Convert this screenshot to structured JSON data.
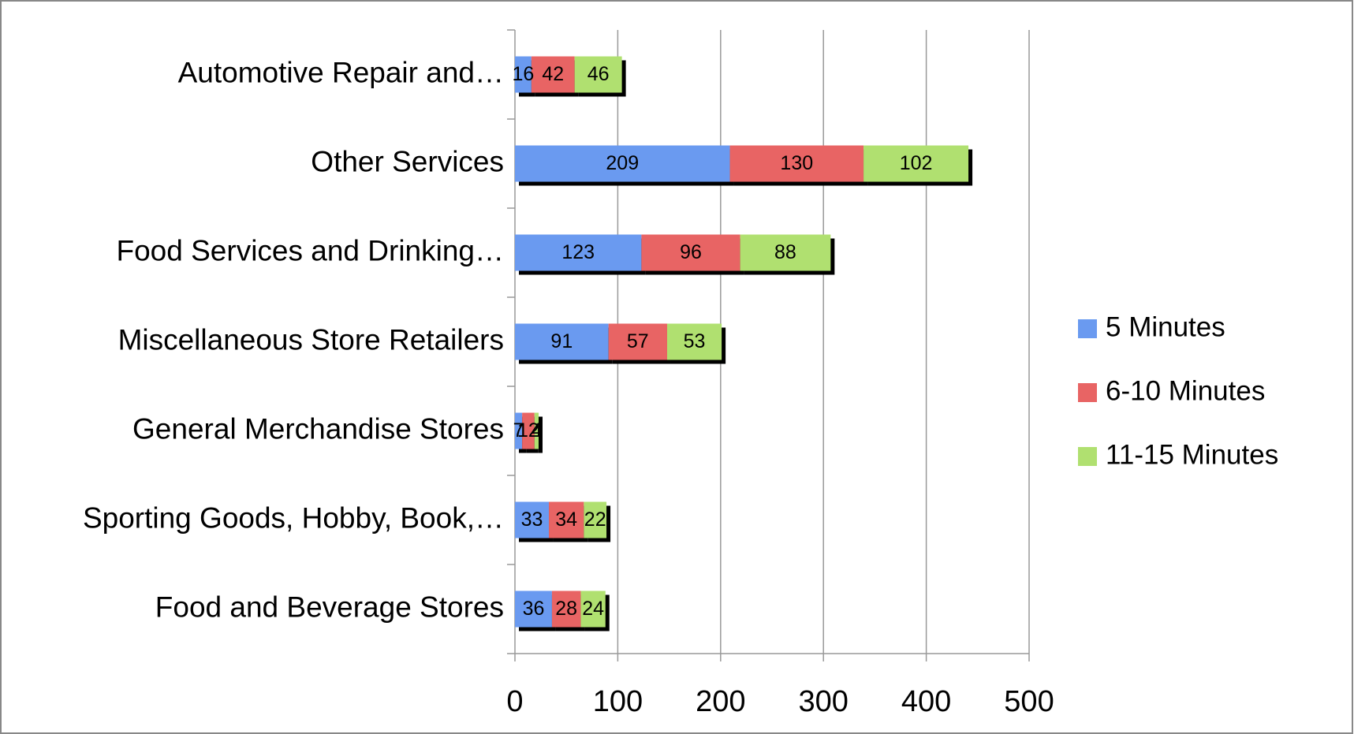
{
  "chart_data": {
    "type": "stacked-hbar",
    "categories": [
      "Automotive Repair and…",
      "Other Services",
      "Food Services and Drinking…",
      "Miscellaneous Store Retailers",
      "General Merchandise Stores",
      "Sporting Goods, Hobby, Book,…",
      "Food and Beverage Stores"
    ],
    "series": [
      {
        "name": "5 Minutes",
        "color": "#6a9af0",
        "values": [
          16,
          209,
          123,
          91,
          7,
          33,
          36
        ]
      },
      {
        "name": "6-10 Minutes",
        "color": "#e86464",
        "values": [
          42,
          130,
          96,
          57,
          12,
          34,
          28
        ]
      },
      {
        "name": "11-15 Minutes",
        "color": "#b0e070",
        "values": [
          46,
          102,
          88,
          53,
          4,
          22,
          24
        ]
      }
    ],
    "xlim": [
      0,
      500
    ],
    "xticks": [
      0,
      100,
      200,
      300,
      400,
      500
    ],
    "grid": true,
    "legend": "right"
  }
}
